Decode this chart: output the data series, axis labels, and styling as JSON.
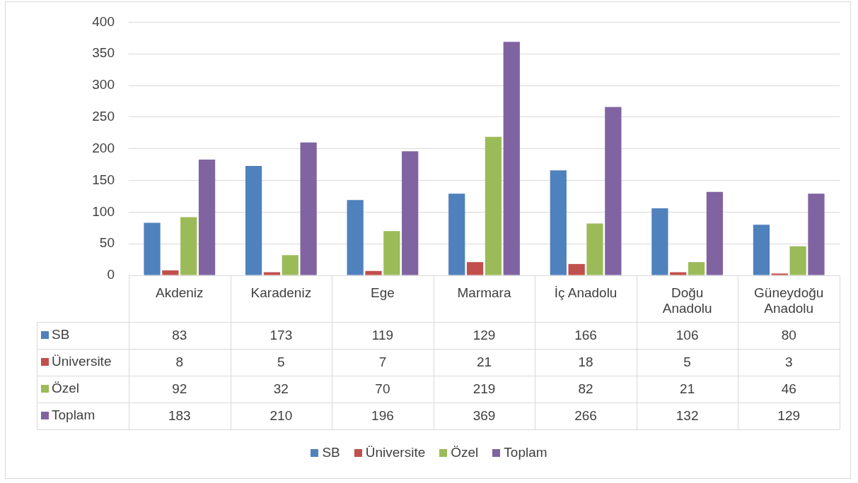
{
  "chart_data": {
    "type": "bar",
    "categories": [
      "Akdeniz",
      "Karadeniz",
      "Ege",
      "Marmara",
      "İç Anadolu",
      "Doğu Anadolu",
      "Güneydoğu Anadolu"
    ],
    "series": [
      {
        "name": "SB",
        "color": "#4f81bd",
        "values": [
          83,
          173,
          119,
          129,
          166,
          106,
          80
        ]
      },
      {
        "name": "Üniversite",
        "color": "#c0504d",
        "values": [
          8,
          5,
          7,
          21,
          18,
          5,
          3
        ]
      },
      {
        "name": "Özel",
        "color": "#9bbb59",
        "values": [
          92,
          32,
          70,
          219,
          82,
          21,
          46
        ]
      },
      {
        "name": "Toplam",
        "color": "#8064a2",
        "values": [
          183,
          210,
          196,
          369,
          266,
          132,
          129
        ]
      }
    ],
    "ylim": [
      0,
      400
    ],
    "yticks": [
      0,
      50,
      100,
      150,
      200,
      250,
      300,
      350,
      400
    ],
    "grid": "y",
    "legend": "bottom",
    "data_labels": true
  }
}
